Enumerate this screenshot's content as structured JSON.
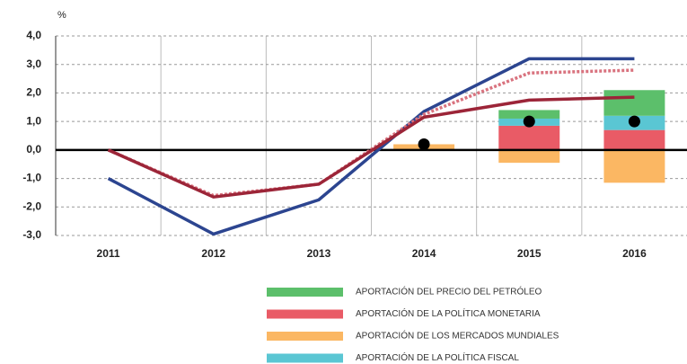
{
  "chart_data": {
    "type": "bar",
    "y_label": "%",
    "categories": [
      "2011",
      "2012",
      "2013",
      "2014",
      "2015",
      "2016"
    ],
    "ylim": [
      -3,
      4
    ],
    "yticks": [
      {
        "value": -3,
        "label": "-3,0"
      },
      {
        "value": -2,
        "label": "-2,0"
      },
      {
        "value": -1,
        "label": "-1,0"
      },
      {
        "value": 0,
        "label": "0,0"
      },
      {
        "value": 1,
        "label": "1,0"
      },
      {
        "value": 2,
        "label": "2,0"
      },
      {
        "value": 3,
        "label": "3,0"
      },
      {
        "value": 4,
        "label": "4,0"
      }
    ],
    "grid": true,
    "legend": "bottom",
    "series": [
      {
        "name": "APORTACIÓN DEL PRECIO DEL PETRÓLEO",
        "color": "#5cbf6b",
        "values": [
          null,
          null,
          null,
          null,
          0.3,
          0.9
        ]
      },
      {
        "name": "APORTACIÓN DE LA POLÍTICA MONETARIA",
        "color": "#e95b66",
        "values": [
          null,
          null,
          null,
          null,
          0.85,
          0.7
        ]
      },
      {
        "name": "APORTACIÓN DE LOS MERCADOS MUNDIALES",
        "color": "#fbb763",
        "values": [
          null,
          null,
          null,
          0.2,
          -0.45,
          -1.15
        ]
      },
      {
        "name": "APORTACIÓN DE LA POLÍTICA FISCAL",
        "color": "#5ac6d3",
        "values": [
          null,
          null,
          null,
          null,
          0.25,
          0.5
        ]
      }
    ],
    "lines": [
      {
        "color": "#2c4590",
        "values": [
          -1.0,
          -2.95,
          -1.75,
          1.35,
          3.2,
          3.2
        ]
      },
      {
        "color": "#d9737f",
        "dashed": true,
        "values": [
          0.0,
          -1.6,
          -1.2,
          1.25,
          2.7,
          2.8
        ]
      },
      {
        "color": "#9c2538",
        "values": [
          0.0,
          -1.65,
          -1.2,
          1.15,
          1.75,
          1.85
        ]
      }
    ],
    "points": {
      "color": "#000000",
      "values": [
        null,
        null,
        null,
        0.2,
        1.0,
        1.0
      ]
    }
  }
}
